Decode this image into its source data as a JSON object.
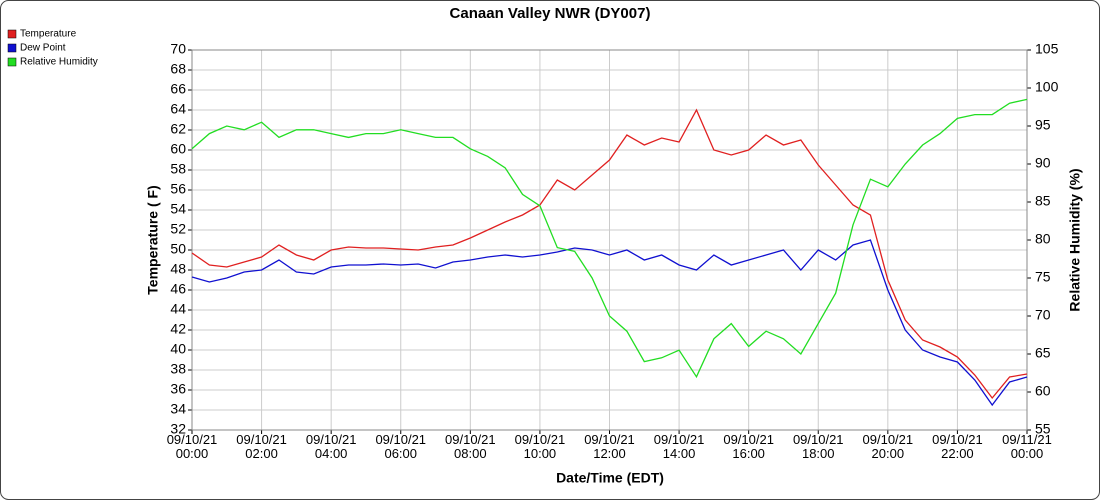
{
  "chart_data": {
    "type": "line",
    "title": "Canaan Valley NWR (DY007)",
    "x_label": "Date/Time (EDT)",
    "y_label": "Temperature ( F)",
    "y2_label": "Relative Humidity (%)",
    "x": [
      0,
      0.5,
      1,
      1.5,
      2,
      2.5,
      3,
      3.5,
      4,
      4.5,
      5,
      5.5,
      6,
      6.5,
      7,
      7.5,
      8,
      8.5,
      9,
      9.5,
      10,
      10.5,
      11,
      11.5,
      12,
      12.5,
      13,
      13.5,
      14,
      14.5,
      15,
      15.5,
      16,
      16.5,
      17,
      17.5,
      18,
      18.5,
      19,
      19.5,
      20,
      20.5,
      21,
      21.5,
      22,
      22.5,
      23,
      23.5,
      24
    ],
    "xlim": [
      0,
      24
    ],
    "xticks": [
      {
        "value": 0,
        "label": "09/10/21\n00:00"
      },
      {
        "value": 2,
        "label": "09/10/21\n02:00"
      },
      {
        "value": 4,
        "label": "09/10/21\n04:00"
      },
      {
        "value": 6,
        "label": "09/10/21\n06:00"
      },
      {
        "value": 8,
        "label": "09/10/21\n08:00"
      },
      {
        "value": 10,
        "label": "09/10/21\n10:00"
      },
      {
        "value": 12,
        "label": "09/10/21\n12:00"
      },
      {
        "value": 14,
        "label": "09/10/21\n14:00"
      },
      {
        "value": 16,
        "label": "09/10/21\n16:00"
      },
      {
        "value": 18,
        "label": "09/10/21\n18:00"
      },
      {
        "value": 20,
        "label": "09/10/21\n20:00"
      },
      {
        "value": 22,
        "label": "09/10/21\n22:00"
      },
      {
        "value": 24,
        "label": "09/11/21\n00:00"
      }
    ],
    "ylim": [
      32,
      70
    ],
    "yticks": [
      32,
      34,
      36,
      38,
      40,
      42,
      44,
      46,
      48,
      50,
      52,
      54,
      56,
      58,
      60,
      62,
      64,
      66,
      68,
      70
    ],
    "y2lim": [
      55,
      105
    ],
    "y2ticks": [
      55,
      60,
      65,
      70,
      75,
      80,
      85,
      90,
      95,
      100,
      105
    ],
    "grid": true,
    "legend": "top-left",
    "series": [
      {
        "name": "Temperature",
        "color": "#e02020",
        "values": [
          49.7,
          48.5,
          48.3,
          48.8,
          49.3,
          50.5,
          49.5,
          49.0,
          50.0,
          50.3,
          50.2,
          50.2,
          50.1,
          50.0,
          50.3,
          50.5,
          51.2,
          52.0,
          52.8,
          53.5,
          54.5,
          57.0,
          56.0,
          57.5,
          59.0,
          61.5,
          60.5,
          61.2,
          60.8,
          64.0,
          60.0,
          59.5,
          60.0,
          61.5,
          60.5,
          61.0,
          58.5,
          56.5,
          54.5,
          53.5,
          47.0,
          43.0,
          41.0,
          40.3,
          39.3,
          37.5,
          35.2,
          37.3,
          37.6
        ]
      },
      {
        "name": "Dew Point",
        "color": "#1010d0",
        "values": [
          47.3,
          46.8,
          47.2,
          47.8,
          48.0,
          49.0,
          47.8,
          47.6,
          48.3,
          48.5,
          48.5,
          48.6,
          48.5,
          48.6,
          48.2,
          48.8,
          49.0,
          49.3,
          49.5,
          49.3,
          49.5,
          49.8,
          50.2,
          50.0,
          49.5,
          50.0,
          49.0,
          49.5,
          48.5,
          48.0,
          49.5,
          48.5,
          49.0,
          49.5,
          50.0,
          48.0,
          50.0,
          49.0,
          50.5,
          51.0,
          46.0,
          42.0,
          40.0,
          39.3,
          38.8,
          37.0,
          34.5,
          36.8,
          37.3
        ]
      },
      {
        "name": "Relative Humidity",
        "color": "#22dd22",
        "axis": "y2",
        "values": [
          92,
          94,
          95,
          94.5,
          95.5,
          93.5,
          94.5,
          94.5,
          94,
          93.5,
          94,
          94,
          94.5,
          94,
          93.5,
          93.5,
          92,
          91,
          89.5,
          86,
          84.5,
          79,
          78.5,
          75,
          70,
          68,
          64,
          64.5,
          65.5,
          62,
          67,
          69,
          66,
          68,
          67,
          65,
          69,
          73,
          82,
          88,
          87,
          90,
          92.5,
          94,
          96,
          96.5,
          96.5,
          98,
          98.5
        ]
      }
    ]
  }
}
